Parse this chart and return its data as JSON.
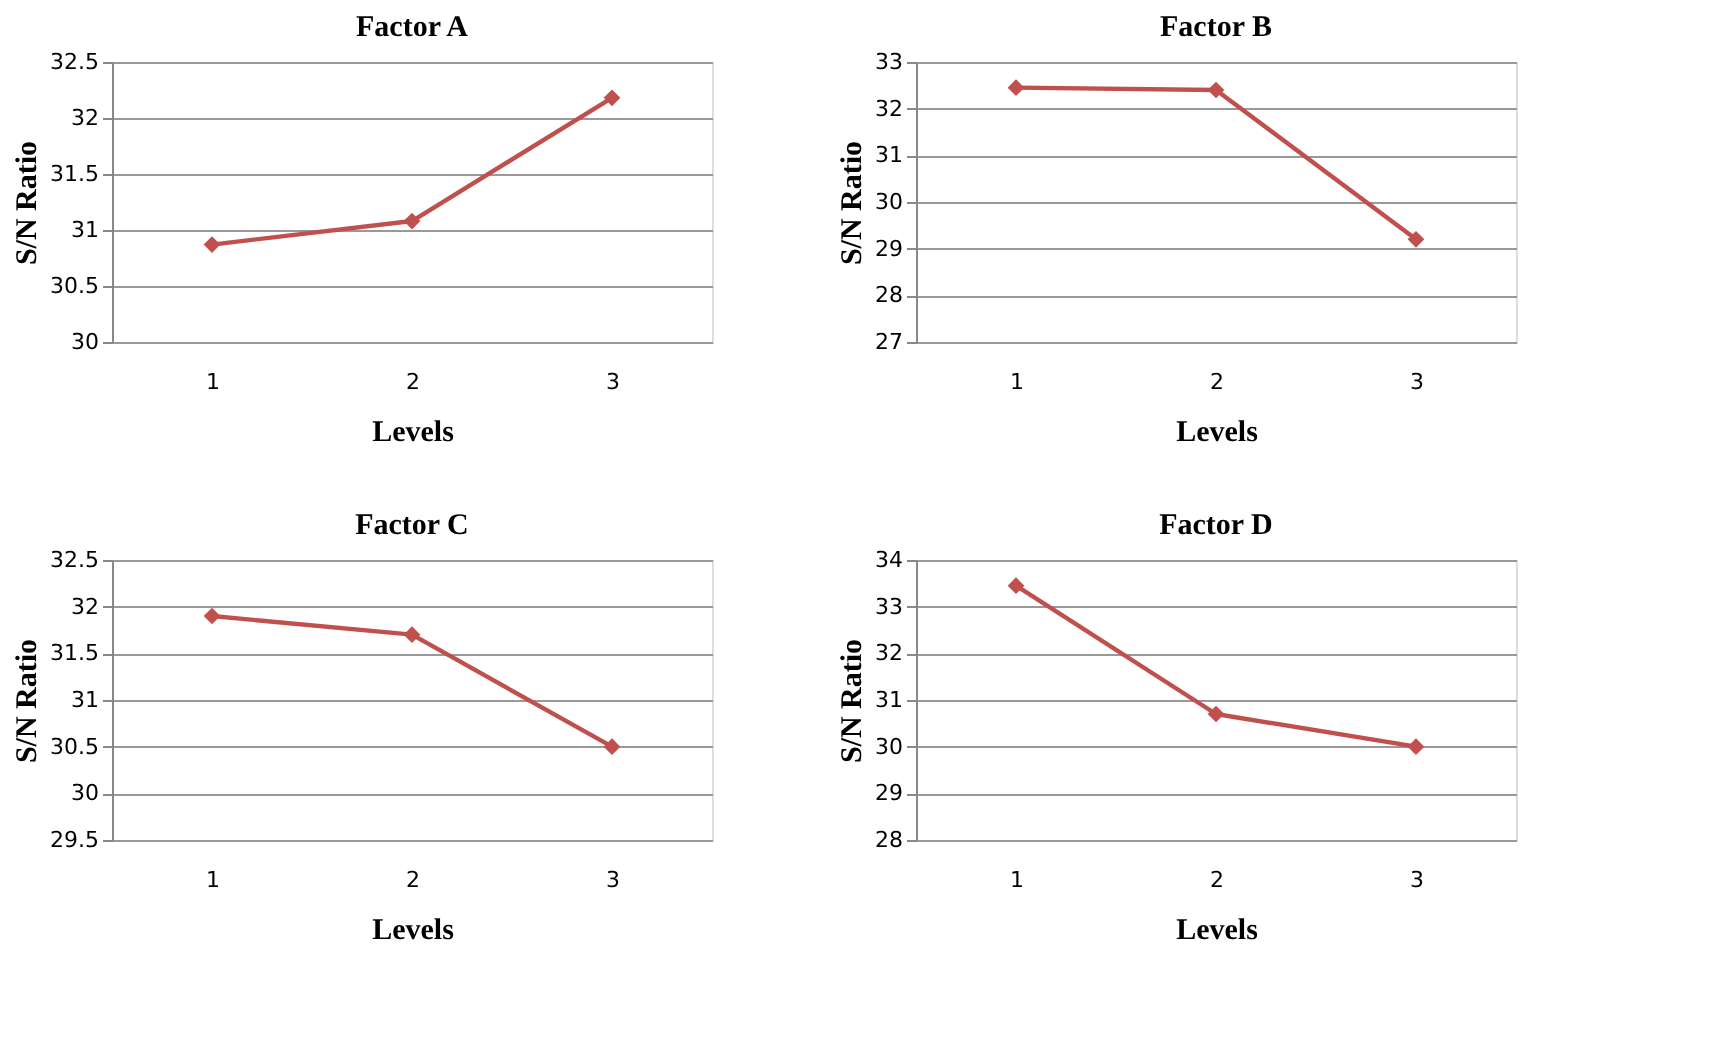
{
  "chart_data": [
    {
      "type": "line",
      "title": "Factor A",
      "xlabel": "Levels",
      "ylabel": "S/N Ratio",
      "categories": [
        "1",
        "2",
        "3"
      ],
      "series": [
        {
          "color": "#c0504d",
          "values": [
            30.87,
            31.08,
            32.18
          ]
        }
      ],
      "ylim": [
        30,
        32.5
      ],
      "yticks": [
        30,
        30.5,
        31,
        31.5,
        32,
        32.5
      ],
      "grid": "y",
      "marker": "diamond",
      "line_style": "solid"
    },
    {
      "type": "line",
      "title": "Factor B",
      "xlabel": "Levels",
      "ylabel": "S/N Ratio",
      "categories": [
        "1",
        "2",
        "3"
      ],
      "series": [
        {
          "color": "#c0504d",
          "values": [
            32.45,
            32.4,
            29.2
          ]
        }
      ],
      "ylim": [
        27,
        33
      ],
      "yticks": [
        27,
        28,
        29,
        30,
        31,
        32,
        33
      ],
      "grid": "y",
      "marker": "diamond",
      "line_style": "solid"
    },
    {
      "type": "line",
      "title": "Factor C",
      "xlabel": "Levels",
      "ylabel": "S/N Ratio",
      "categories": [
        "1",
        "2",
        "3"
      ],
      "series": [
        {
          "color": "#c0504d",
          "values": [
            31.9,
            31.7,
            30.5
          ]
        }
      ],
      "ylim": [
        29.5,
        32.5
      ],
      "yticks": [
        29.5,
        30,
        30.5,
        31,
        31.5,
        32,
        32.5
      ],
      "grid": "y",
      "marker": "diamond",
      "line_style": "solid"
    },
    {
      "type": "line",
      "title": "Factor D",
      "xlabel": "Levels",
      "ylabel": "S/N Ratio",
      "categories": [
        "1",
        "2",
        "3"
      ],
      "series": [
        {
          "color": "#c0504d",
          "values": [
            33.45,
            30.7,
            30.0
          ]
        }
      ],
      "ylim": [
        28,
        34
      ],
      "yticks": [
        28,
        29,
        30,
        31,
        32,
        33,
        34
      ],
      "grid": "y",
      "marker": "diamond",
      "line_style": "solid"
    }
  ]
}
